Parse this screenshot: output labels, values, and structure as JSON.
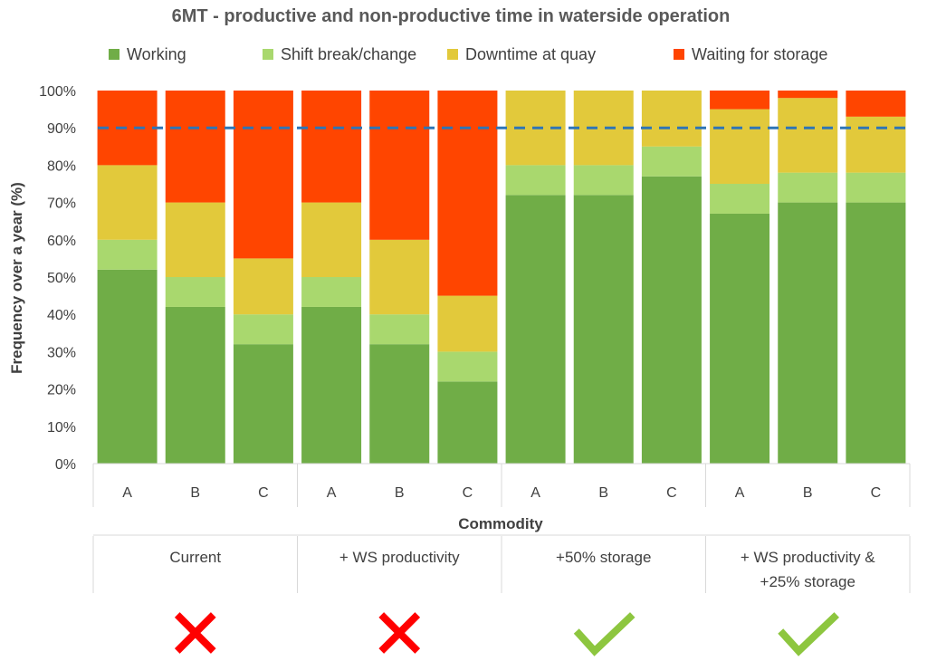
{
  "chart_data": {
    "type": "bar",
    "stacked": true,
    "title": "6MT - productive and non-productive time in waterside operation",
    "ylabel": "Frequency over a year (%)",
    "xlabel": "Commodity",
    "ylim": [
      0,
      100
    ],
    "yticks": [
      "0%",
      "10%",
      "20%",
      "30%",
      "40%",
      "50%",
      "60%",
      "70%",
      "80%",
      "90%",
      "100%"
    ],
    "legend_position": "top",
    "grid": false,
    "categories": [
      "A",
      "B",
      "C",
      "A",
      "B",
      "C",
      "A",
      "B",
      "C",
      "A",
      "B",
      "C"
    ],
    "groups": [
      {
        "label": "Current",
        "outcome": "cross"
      },
      {
        "label": "+ WS productivity",
        "outcome": "cross"
      },
      {
        "label": "+50% storage",
        "outcome": "check"
      },
      {
        "label": "+ WS productivity &\n+25% storage",
        "outcome": "check"
      }
    ],
    "series": [
      {
        "name": "Working",
        "color": "#70AD47",
        "values": [
          52,
          42,
          32,
          42,
          32,
          22,
          72,
          72,
          77,
          67,
          70,
          70
        ]
      },
      {
        "name": "Shift break/change",
        "color": "#A9D86E",
        "values": [
          8,
          8,
          8,
          8,
          8,
          8,
          8,
          8,
          8,
          8,
          8,
          8
        ]
      },
      {
        "name": "Downtime at quay",
        "color": "#E2C93B",
        "values": [
          20,
          20,
          15,
          20,
          20,
          15,
          20,
          20,
          15,
          20,
          20,
          15
        ]
      },
      {
        "name": "Waiting for storage",
        "color": "#FF4500",
        "values": [
          20,
          30,
          45,
          30,
          40,
          55,
          0,
          0,
          0,
          5,
          2,
          7
        ]
      }
    ],
    "reference_line": {
      "value": 90,
      "style": "dashed",
      "color": "#2E75B6"
    },
    "outcome_colors": {
      "cross": "#FF0000",
      "check": "#8DC63F"
    }
  }
}
